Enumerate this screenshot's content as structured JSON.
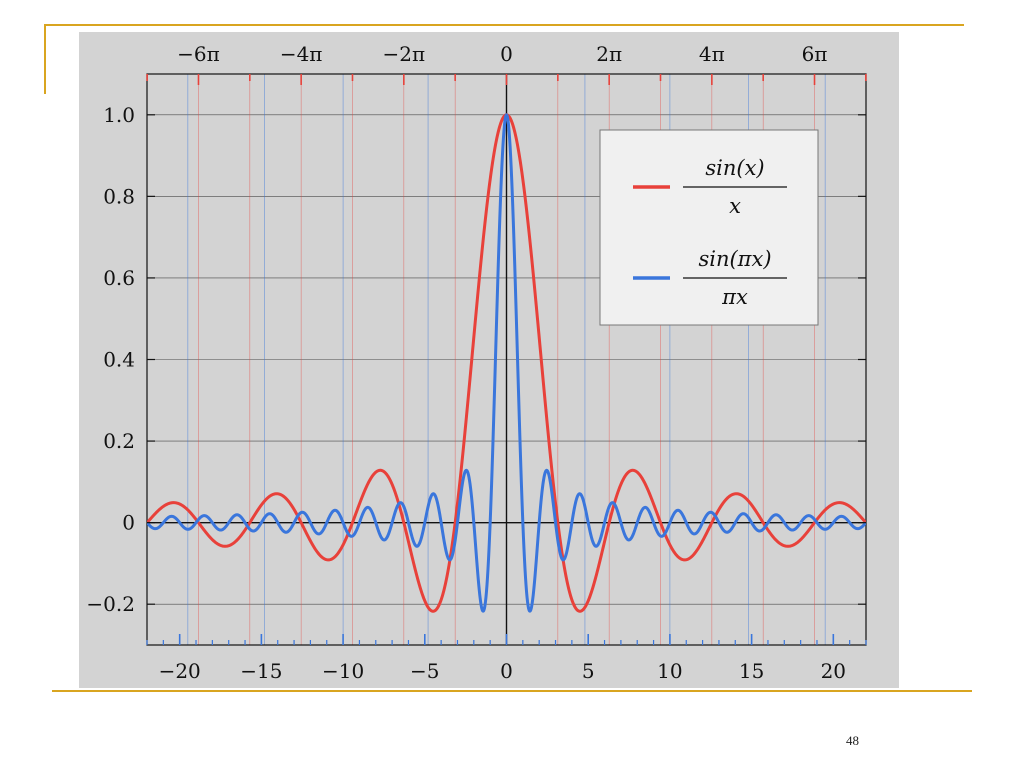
{
  "slide": {
    "page_number": "48"
  },
  "colors": {
    "accent_rule": "#d9a520",
    "figure_background": "#d3d3d3",
    "red_series": "#e8413a",
    "blue_series": "#3a76dc",
    "legend_background": "#f0f0f0"
  },
  "chart_data": {
    "type": "line",
    "title": "",
    "xlabel": "",
    "ylabel": "",
    "xlim": [
      -22,
      22
    ],
    "ylim": [
      -0.3,
      1.1
    ],
    "grid": true,
    "legend_placement": "top-right",
    "x_ticks_bottom": [
      {
        "value": -20,
        "label": "−20"
      },
      {
        "value": -15,
        "label": "−15"
      },
      {
        "value": -10,
        "label": "−10"
      },
      {
        "value": -5,
        "label": "−5"
      },
      {
        "value": 0,
        "label": "0"
      },
      {
        "value": 5,
        "label": "5"
      },
      {
        "value": 10,
        "label": "10"
      },
      {
        "value": 15,
        "label": "15"
      },
      {
        "value": 20,
        "label": "20"
      }
    ],
    "x_ticks_top": [
      {
        "value": -18.8496,
        "label": "−6π"
      },
      {
        "value": -12.5664,
        "label": "−4π"
      },
      {
        "value": -6.2832,
        "label": "−2π"
      },
      {
        "value": 0,
        "label": "0"
      },
      {
        "value": 6.2832,
        "label": "2π"
      },
      {
        "value": 12.5664,
        "label": "4π"
      },
      {
        "value": 18.8496,
        "label": "6π"
      }
    ],
    "y_ticks": [
      {
        "value": 1.0,
        "label": "1.0"
      },
      {
        "value": 0.8,
        "label": "0.8"
      },
      {
        "value": 0.6,
        "label": "0.6"
      },
      {
        "value": 0.4,
        "label": "0.4"
      },
      {
        "value": 0.2,
        "label": "0.2"
      },
      {
        "value": 0,
        "label": "0"
      },
      {
        "value": -0.2,
        "label": "−0.2"
      }
    ],
    "series": [
      {
        "name": "sin(x)/x",
        "legend_numerator": "sin(x)",
        "legend_denominator": "x",
        "color": "#e8413a",
        "function": "sin(x)/x",
        "x": [
          -22,
          -20,
          -18,
          -16,
          -14,
          -12,
          -10,
          -8,
          -6,
          -4,
          -2,
          -1,
          0,
          1,
          2,
          4,
          6,
          8,
          10,
          12,
          14,
          16,
          18,
          20,
          22
        ],
        "values": [
          -0.0004,
          0.0456,
          -0.0417,
          -0.018,
          0.0707,
          -0.0447,
          -0.0544,
          0.1237,
          0.0466,
          -0.1892,
          0.4546,
          0.8415,
          1.0,
          0.8415,
          0.4546,
          -0.1892,
          0.0466,
          0.1237,
          -0.0544,
          -0.0447,
          0.0707,
          -0.018,
          -0.0417,
          0.0456,
          -0.0004
        ]
      },
      {
        "name": "sin(πx)/(πx)",
        "legend_numerator": "sin(πx)",
        "legend_denominator": "πx",
        "color": "#3a76dc",
        "function": "sin(pi*x)/(pi*x)",
        "x": [
          -4.5,
          -3.5,
          -2.5,
          -1.5,
          -1,
          -0.5,
          0,
          0.5,
          1,
          1.5,
          2.5,
          3.5,
          4.5
        ],
        "values": [
          0.0707,
          -0.0909,
          0.1273,
          -0.2122,
          0.0,
          0.6366,
          1.0,
          0.6366,
          0.0,
          -0.2122,
          0.1273,
          -0.0909,
          0.0707
        ]
      }
    ]
  }
}
